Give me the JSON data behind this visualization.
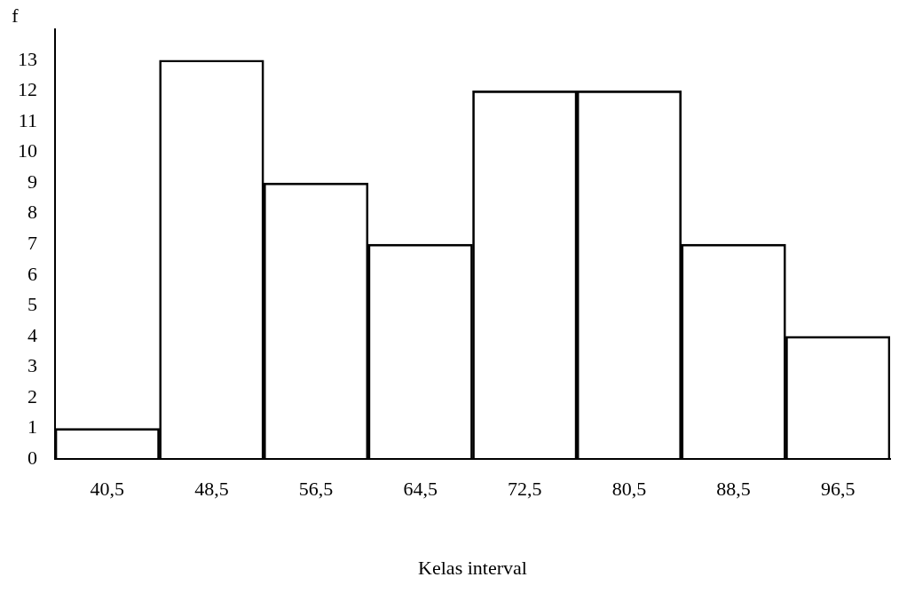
{
  "chart_data": {
    "type": "bar",
    "xlabel": "Kelas interval",
    "ylabel": "f",
    "categories": [
      "40,5",
      "48,5",
      "56,5",
      "64,5",
      "72,5",
      "80,5",
      "88,5",
      "96,5"
    ],
    "values": [
      1,
      13,
      9,
      7,
      12,
      12,
      7,
      4
    ],
    "color": "#000000",
    "ylim": [
      0,
      14
    ],
    "yticks": [
      0,
      1,
      2,
      3,
      4,
      5,
      6,
      7,
      8,
      9,
      10,
      11,
      12,
      13
    ],
    "grid": false,
    "legend": false
  }
}
